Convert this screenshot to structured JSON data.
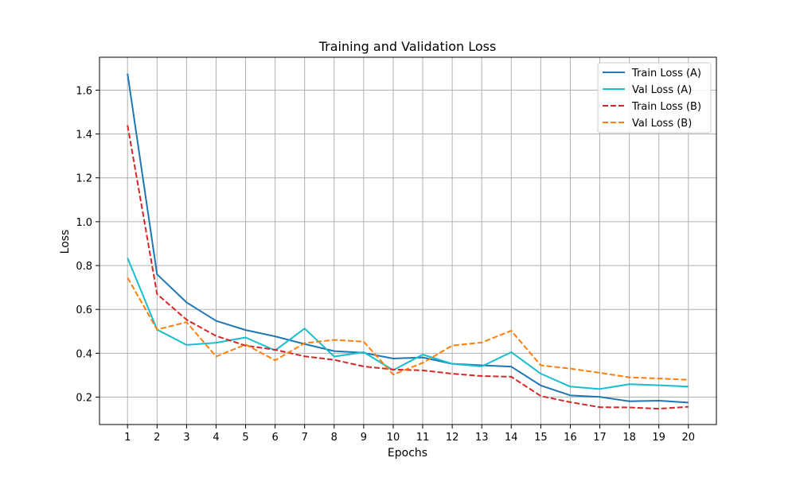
{
  "chart_data": {
    "type": "line",
    "title": "Training and Validation Loss",
    "xlabel": "Epochs",
    "ylabel": "Loss",
    "x": [
      1,
      2,
      3,
      4,
      5,
      6,
      7,
      8,
      9,
      10,
      11,
      12,
      13,
      14,
      15,
      16,
      17,
      18,
      19,
      20
    ],
    "xlim": [
      0.05,
      20.95
    ],
    "ylim": [
      0.075,
      1.75
    ],
    "yticks": [
      0.2,
      0.4,
      0.6,
      0.8,
      1.0,
      1.2,
      1.4,
      1.6
    ],
    "ytick_labels": [
      "0.2",
      "0.4",
      "0.6",
      "0.8",
      "1.0",
      "1.2",
      "1.4",
      "1.6"
    ],
    "grid": true,
    "legend_position": "top-right",
    "series": [
      {
        "name": "Train Loss (A)",
        "color": "#1f77b4",
        "dash": "solid",
        "values": [
          1.675,
          0.76,
          0.632,
          0.548,
          0.506,
          0.477,
          0.442,
          0.41,
          0.402,
          0.376,
          0.381,
          0.352,
          0.345,
          0.339,
          0.253,
          0.208,
          0.201,
          0.181,
          0.184,
          0.175
        ]
      },
      {
        "name": "Val Loss (A)",
        "color": "#17becf",
        "dash": "solid",
        "values": [
          0.835,
          0.508,
          0.438,
          0.448,
          0.472,
          0.413,
          0.513,
          0.385,
          0.405,
          0.323,
          0.394,
          0.352,
          0.34,
          0.405,
          0.307,
          0.248,
          0.237,
          0.259,
          0.254,
          0.248
        ]
      },
      {
        "name": "Train Loss (B)",
        "color": "#d62728",
        "dash": "dashed",
        "values": [
          1.44,
          0.67,
          0.553,
          0.479,
          0.435,
          0.416,
          0.386,
          0.37,
          0.34,
          0.326,
          0.322,
          0.307,
          0.296,
          0.293,
          0.205,
          0.177,
          0.154,
          0.153,
          0.147,
          0.156
        ]
      },
      {
        "name": "Val Loss (B)",
        "color": "#ff7f0e",
        "dash": "dashed",
        "values": [
          0.745,
          0.508,
          0.542,
          0.385,
          0.44,
          0.368,
          0.446,
          0.461,
          0.453,
          0.303,
          0.356,
          0.435,
          0.449,
          0.503,
          0.345,
          0.33,
          0.311,
          0.29,
          0.285,
          0.279
        ]
      }
    ]
  }
}
